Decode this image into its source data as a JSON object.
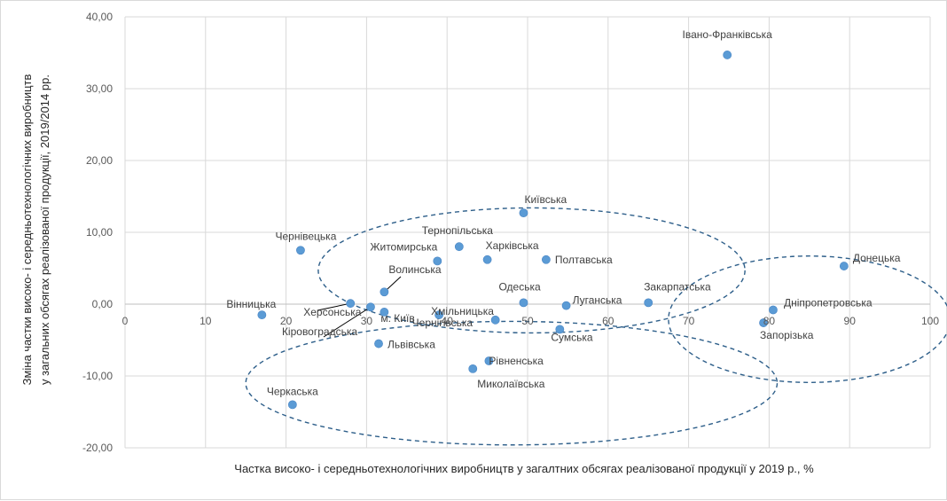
{
  "chart_data": {
    "type": "scatter",
    "title": "",
    "xlabel": "Частка високо- і середньотехнологічних виробництв  у загалтних обсягах реалізованої продукції у 2019 р., %",
    "ylabel_lines": [
      "Зміна частки високо- і середньотехнологічних виробництв",
      "у загальних обсягах реалізованої продукції, 2019/2014 рр."
    ],
    "xlim": [
      0,
      100
    ],
    "ylim": [
      -20,
      40
    ],
    "x_ticks": [
      "0",
      "10",
      "20",
      "30",
      "40",
      "50",
      "60",
      "70",
      "80",
      "90",
      "100"
    ],
    "y_ticks": [
      "-20,00",
      "-10,00",
      "0,00",
      "10,00",
      "20,00",
      "30,00",
      "40,00"
    ],
    "grid": "vertical and horizontal",
    "marker_color": "#5b9bd5",
    "ellipse_color": "#2e5f8a",
    "points": [
      {
        "name": "Івано-Франківська",
        "x": 74.8,
        "y": 34.7
      },
      {
        "name": "Київська",
        "x": 49.5,
        "y": 12.7
      },
      {
        "name": "Тернопільська",
        "x": 41.5,
        "y": 8.0
      },
      {
        "name": "Харківська",
        "x": 45.0,
        "y": 6.2
      },
      {
        "name": "Полтавська",
        "x": 52.3,
        "y": 6.2
      },
      {
        "name": "Житомирська",
        "x": 38.8,
        "y": 6.0
      },
      {
        "name": "Чернівецька",
        "x": 21.8,
        "y": 7.5
      },
      {
        "name": "Донецька",
        "x": 89.3,
        "y": 5.3
      },
      {
        "name": "Волинська",
        "x": 32.2,
        "y": 1.7
      },
      {
        "name": "Одеська",
        "x": 49.5,
        "y": 0.2
      },
      {
        "name": "Луганська",
        "x": 54.8,
        "y": -0.2
      },
      {
        "name": "Закарпатська",
        "x": 65.0,
        "y": 0.2
      },
      {
        "name": "Дніпропетровська",
        "x": 80.5,
        "y": -0.8
      },
      {
        "name": "Запорізька",
        "x": 79.3,
        "y": -2.6
      },
      {
        "name": "Вінницька",
        "x": 17.0,
        "y": -1.5
      },
      {
        "name": "Херсонська",
        "x": 28.0,
        "y": 0.1
      },
      {
        "name": "Кіровоградська",
        "x": 30.5,
        "y": -0.4
      },
      {
        "name": "м. Київ",
        "x": 32.2,
        "y": -1.1
      },
      {
        "name": "Хмільницька",
        "x": 39.0,
        "y": -1.5
      },
      {
        "name": "Чернігівська",
        "x": 46.0,
        "y": -2.2
      },
      {
        "name": "Сумська",
        "x": 54.0,
        "y": -3.5
      },
      {
        "name": "Львівська",
        "x": 31.5,
        "y": -5.5
      },
      {
        "name": "Рівненська",
        "x": 45.2,
        "y": -7.9
      },
      {
        "name": "Миколаївська",
        "x": 43.2,
        "y": -9.0
      },
      {
        "name": "Черкаська",
        "x": 20.8,
        "y": -14.0
      }
    ]
  }
}
